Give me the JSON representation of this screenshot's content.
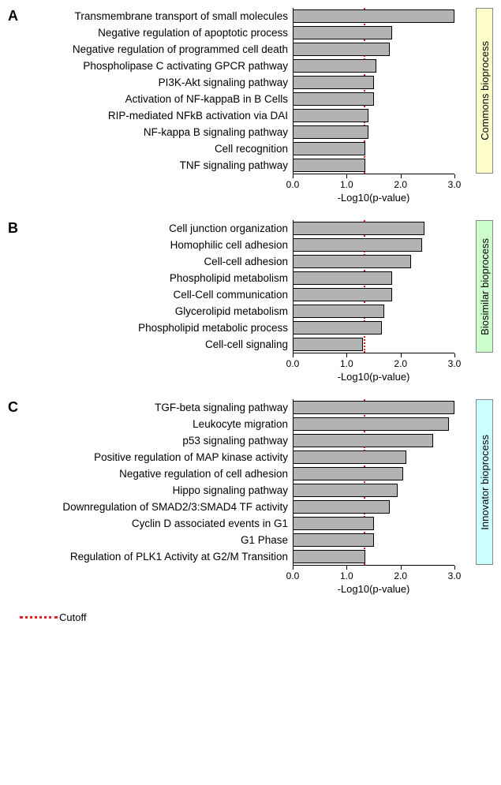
{
  "x_axis": {
    "title": "-Log10(p-value)",
    "min": 0.0,
    "max": 3.0,
    "ticks": [
      0.0,
      1.0,
      2.0,
      3.0
    ],
    "cutoff": 1.3
  },
  "colors": {
    "bar_fill": "#b3b3b3",
    "bar_stroke": "#000000",
    "cutoff": "#e41a1c",
    "strip_A": "#ffffcc",
    "strip_B": "#ccffcc",
    "strip_C": "#ccffff"
  },
  "legend": {
    "label": "Cutoff"
  },
  "panels": [
    {
      "letter": "A",
      "strip": "Commons bioprocess",
      "strip_color": "#ffffcc",
      "items": [
        {
          "label": "Transmembrane transport of small molecules",
          "value": 3.0
        },
        {
          "label": "Negative regulation of apoptotic process",
          "value": 1.85
        },
        {
          "label": "Negative regulation of programmed cell death",
          "value": 1.8
        },
        {
          "label": "Phospholipase C activating GPCR pathway",
          "value": 1.55
        },
        {
          "label": "PI3K-Akt signaling pathway",
          "value": 1.5
        },
        {
          "label": "Activation of NF-kappaB in B Cells",
          "value": 1.5
        },
        {
          "label": "RIP-mediated NFkB activation via DAI",
          "value": 1.4
        },
        {
          "label": "NF-kappa B signaling pathway",
          "value": 1.4
        },
        {
          "label": "Cell recognition",
          "value": 1.35
        },
        {
          "label": "TNF signaling pathway",
          "value": 1.35
        }
      ]
    },
    {
      "letter": "B",
      "strip": "Biosimilar bioprocess",
      "strip_color": "#ccffcc",
      "items": [
        {
          "label": "Cell junction organization",
          "value": 2.45
        },
        {
          "label": "Homophilic cell adhesion",
          "value": 2.4
        },
        {
          "label": "Cell-cell adhesion",
          "value": 2.2
        },
        {
          "label": "Phospholipid metabolism",
          "value": 1.85
        },
        {
          "label": "Cell-Cell communication",
          "value": 1.85
        },
        {
          "label": "Glycerolipid metabolism",
          "value": 1.7
        },
        {
          "label": "Phospholipid metabolic process",
          "value": 1.65
        },
        {
          "label": "Cell-cell signaling",
          "value": 1.3
        }
      ]
    },
    {
      "letter": "C",
      "strip": "Innovator bioprocess",
      "strip_color": "#ccffff",
      "items": [
        {
          "label": "TGF-beta signaling pathway",
          "value": 3.0
        },
        {
          "label": "Leukocyte migration",
          "value": 2.9
        },
        {
          "label": "p53 signaling pathway",
          "value": 2.6
        },
        {
          "label": "Positive regulation of MAP kinase activity",
          "value": 2.1
        },
        {
          "label": "Negative regulation of cell adhesion",
          "value": 2.05
        },
        {
          "label": "Hippo signaling pathway",
          "value": 1.95
        },
        {
          "label": "Downregulation of SMAD2/3:SMAD4 TF activity",
          "value": 1.8
        },
        {
          "label": "Cyclin D associated events in G1",
          "value": 1.5
        },
        {
          "label": "G1 Phase",
          "value": 1.5
        },
        {
          "label": "Regulation of PLK1 Activity at G2/M Transition",
          "value": 1.35
        }
      ]
    }
  ]
}
